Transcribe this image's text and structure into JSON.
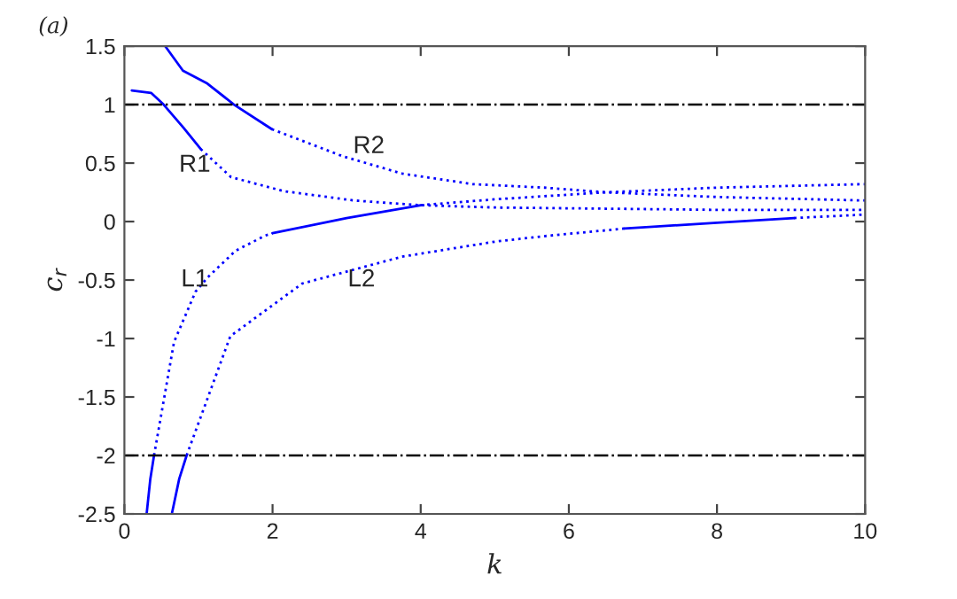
{
  "chart_data": {
    "type": "line",
    "xlabel": "k",
    "ylabel": "c$_{r}$",
    "annotations": [
      "(a)",
      "R1",
      "R2",
      "L1",
      "L2"
    ],
    "xlim": [
      0,
      10
    ],
    "ylim": [
      -2.5,
      1.5
    ],
    "xticks": [
      0,
      2,
      4,
      6,
      8,
      10
    ],
    "yticks": [
      -2.5,
      -2,
      -1.5,
      -1,
      -0.5,
      0,
      0.5,
      1,
      1.5
    ],
    "grid": false,
    "legend": false,
    "ref_lines": [
      {
        "axis": "y",
        "value": 1,
        "label": null,
        "color": "#000000",
        "line_style": "dashdot"
      },
      {
        "axis": "y",
        "value": -2,
        "label": null,
        "color": "#000000",
        "line_style": "dashdot"
      }
    ],
    "series": [
      {
        "color": "#0000ff",
        "line_style": "solid",
        "x": [
          0.1,
          0.36,
          0.53,
          0.8,
          1.03
        ],
        "values": [
          1.12,
          1.1,
          1.0,
          0.8,
          0.62
        ]
      },
      {
        "color": "#0000ff",
        "line_style": "dotted",
        "x": [
          1.03,
          1.44,
          2.15,
          3.1,
          4.0,
          5.0,
          6.5,
          8.0,
          10
        ],
        "values": [
          0.62,
          0.38,
          0.26,
          0.18,
          0.14,
          0.12,
          0.11,
          0.1,
          0.1
        ]
      },
      {
        "color": "#0000ff",
        "line_style": "solid",
        "x": [
          0.55,
          0.79,
          1.12,
          1.48,
          1.99
        ],
        "values": [
          1.5,
          1.29,
          1.18,
          1.0,
          0.79
        ]
      },
      {
        "color": "#0000ff",
        "line_style": "dotted",
        "x": [
          1.99,
          2.94,
          3.75,
          4.7,
          5.67,
          6.5,
          8.0,
          10
        ],
        "values": [
          0.79,
          0.56,
          0.41,
          0.32,
          0.29,
          0.25,
          0.21,
          0.18
        ]
      },
      {
        "color": "#0000ff",
        "line_style": "solid",
        "x": [
          0.3,
          0.35,
          0.4
        ],
        "values": [
          -2.5,
          -2.2,
          -2.0
        ]
      },
      {
        "color": "#0000ff",
        "line_style": "dotted",
        "x": [
          0.4,
          0.67,
          0.96,
          1.12,
          1.5,
          1.9,
          2.0
        ],
        "values": [
          -2.0,
          -1.03,
          -0.6,
          -0.48,
          -0.25,
          -0.12,
          -0.1
        ]
      },
      {
        "color": "#0000ff",
        "line_style": "solid",
        "x": [
          2.0,
          3.0,
          4.0
        ],
        "values": [
          -0.1,
          0.03,
          0.14
        ]
      },
      {
        "color": "#0000ff",
        "line_style": "dotted",
        "x": [
          4.0,
          5.0,
          6.5,
          8.0,
          10
        ],
        "values": [
          0.14,
          0.19,
          0.25,
          0.29,
          0.32
        ]
      },
      {
        "color": "#0000ff",
        "line_style": "solid",
        "x": [
          0.64,
          0.74,
          0.84
        ],
        "values": [
          -2.5,
          -2.2,
          -2.0
        ]
      },
      {
        "color": "#0000ff",
        "line_style": "dotted",
        "x": [
          0.84,
          1.43,
          2.4,
          3.75,
          5.02,
          5.74,
          6.75
        ],
        "values": [
          -2.0,
          -0.98,
          -0.53,
          -0.3,
          -0.17,
          -0.12,
          -0.06
        ]
      },
      {
        "color": "#0000ff",
        "line_style": "solid",
        "x": [
          6.75,
          8.0,
          9.04
        ],
        "values": [
          -0.06,
          -0.01,
          0.03
        ]
      },
      {
        "color": "#0000ff",
        "line_style": "dotted",
        "x": [
          9.04,
          10
        ],
        "values": [
          0.03,
          0.06
        ]
      }
    ]
  }
}
